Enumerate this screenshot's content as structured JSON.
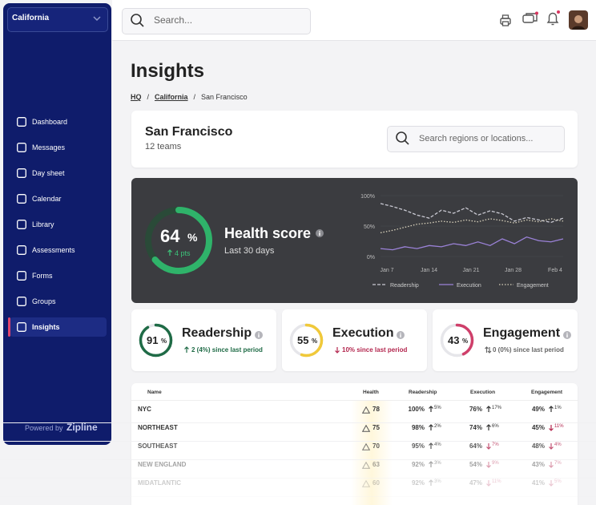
{
  "sidebar": {
    "region": "California",
    "nav": [
      "Dashboard",
      "Messages",
      "Day sheet",
      "Calendar",
      "Library",
      "Assessments",
      "Forms",
      "Groups",
      "Insights"
    ],
    "active": 8,
    "powered_by": "Powered by",
    "brand": "Zipline"
  },
  "topbar": {
    "search_placeholder": "Search..."
  },
  "page": {
    "title": "Insights",
    "breadcrumb": [
      "HQ",
      "California",
      "San Francisco"
    ],
    "separator": "/"
  },
  "location": {
    "name": "San Francisco",
    "subtitle": "12 teams",
    "search_placeholder": "Search regions or locations..."
  },
  "health": {
    "score": 64,
    "unit": "%",
    "delta": "4 pts",
    "title": "Health score",
    "period": "Last 30 days",
    "chart": {
      "type": "line",
      "ylim": [
        0,
        100
      ],
      "yticks": [
        {
          "value": 100,
          "label": "100%"
        },
        {
          "value": 50,
          "label": "50%"
        },
        {
          "value": 0,
          "label": "0%"
        }
      ],
      "categories": [
        "Jan 7",
        "Jan 14",
        "Jan 21",
        "Jan 28",
        "Feb 4"
      ],
      "series": [
        {
          "name": "Readership",
          "color": "#c9c9d2",
          "values": [
            87,
            82,
            76,
            68,
            63,
            76,
            71,
            80,
            68,
            75,
            70,
            58,
            64,
            60,
            56,
            63
          ]
        },
        {
          "name": "Execution",
          "color": "#9b82d8",
          "values": [
            13,
            11,
            16,
            13,
            18,
            16,
            21,
            18,
            24,
            18,
            29,
            21,
            32,
            26,
            24,
            29
          ]
        },
        {
          "name": "Engagement",
          "color": "#d9d2bc",
          "values": [
            39,
            43,
            48,
            53,
            55,
            58,
            56,
            60,
            57,
            62,
            59,
            55,
            60,
            57,
            62,
            58
          ]
        }
      ]
    }
  },
  "metrics": [
    {
      "name": "Readership",
      "value": 91,
      "unit": "%",
      "delta": "2 (4%) since last period",
      "trend": "up",
      "color": "#1f6b46"
    },
    {
      "name": "Execution",
      "value": 55,
      "unit": "%",
      "delta": "10% since last period",
      "trend": "down",
      "color": "#f0c93a"
    },
    {
      "name": "Engagement",
      "value": 43,
      "unit": "%",
      "delta": "0 (0%) since last period",
      "trend": "flat",
      "color": "#cf3f6a"
    }
  ],
  "table": {
    "columns": [
      "Name",
      "Health",
      "Readership",
      "Execution",
      "Engagement"
    ],
    "rows": [
      {
        "name": "NYC",
        "health": "78",
        "cells": [
          {
            "value": "100%",
            "change": "5%",
            "trend": "up"
          },
          {
            "value": "76%",
            "change": "17%",
            "trend": "up"
          },
          {
            "value": "49%",
            "change": "1%",
            "trend": "up"
          }
        ]
      },
      {
        "name": "NORTHEAST",
        "health": "75",
        "cells": [
          {
            "value": "98%",
            "change": "2%",
            "trend": "up"
          },
          {
            "value": "74%",
            "change": "6%",
            "trend": "up"
          },
          {
            "value": "45%",
            "change": "11%",
            "trend": "down"
          }
        ]
      },
      {
        "name": "SOUTHEAST",
        "health": "70",
        "cells": [
          {
            "value": "95%",
            "change": "4%",
            "trend": "up"
          },
          {
            "value": "64%",
            "change": "7%",
            "trend": "down"
          },
          {
            "value": "48%",
            "change": "4%",
            "trend": "down"
          }
        ]
      },
      {
        "name": "NEW ENGLAND",
        "health": "63",
        "cells": [
          {
            "value": "92%",
            "change": "3%",
            "trend": "up"
          },
          {
            "value": "54%",
            "change": "9%",
            "trend": "down"
          },
          {
            "value": "43%",
            "change": "7%",
            "trend": "down"
          }
        ]
      },
      {
        "name": "MIDATLANTIC",
        "health": "60",
        "cells": [
          {
            "value": "92%",
            "change": "3%",
            "trend": "up"
          },
          {
            "value": "47%",
            "change": "11%",
            "trend": "down"
          },
          {
            "value": "41%",
            "change": "5%",
            "trend": "down"
          }
        ]
      }
    ]
  }
}
